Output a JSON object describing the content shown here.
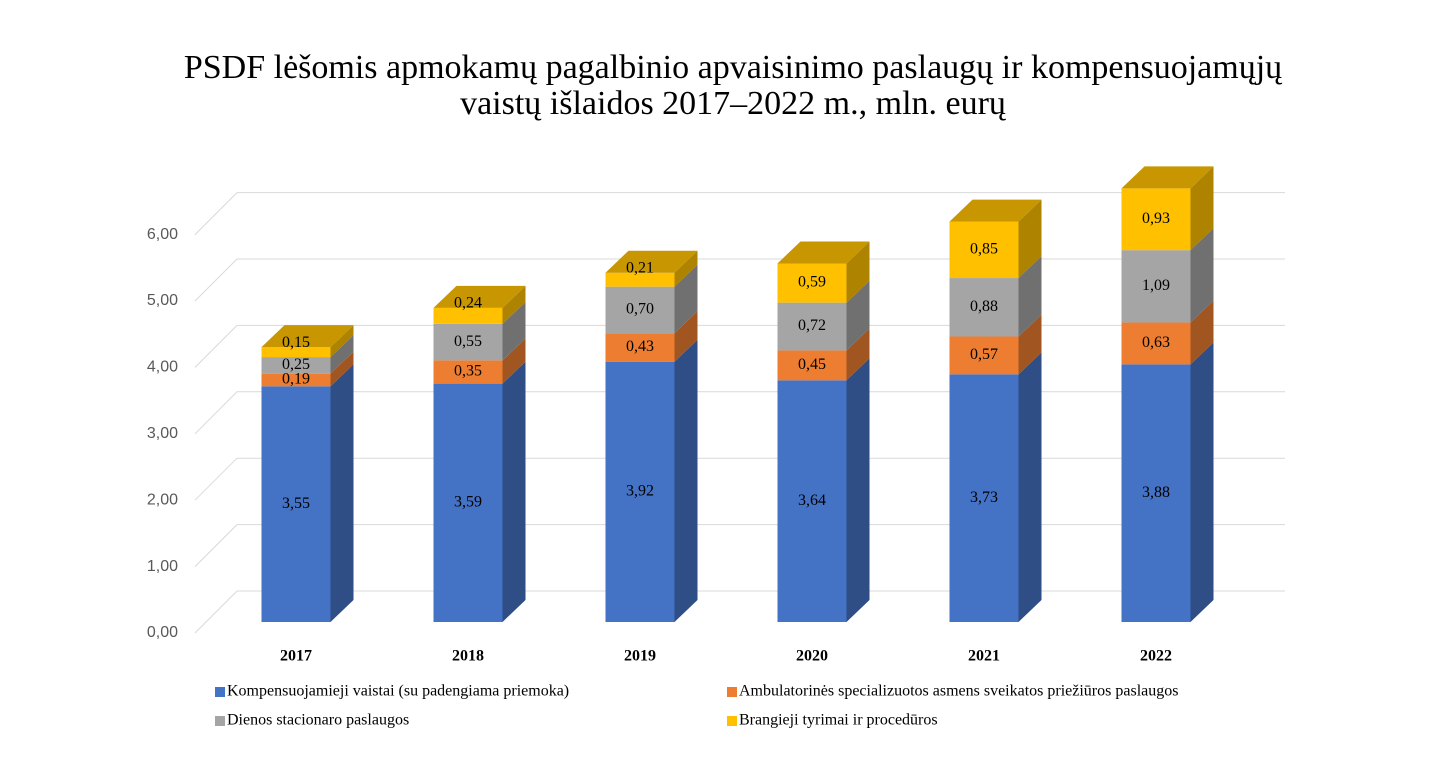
{
  "chart_data": {
    "type": "bar3d-stacked",
    "title": "PSDF lėšomis apmokamų pagalbinio apvaisinimo paslaugų ir kompensuojamųjų vaistų išlaidos 2017–2022 m., mln. eurų",
    "categories": [
      "2017",
      "2018",
      "2019",
      "2020",
      "2021",
      "2022"
    ],
    "ylim": [
      0,
      6
    ],
    "yticks": [
      {
        "value": 0,
        "label": "0,00"
      },
      {
        "value": 1,
        "label": "1,00"
      },
      {
        "value": 2,
        "label": "2,00"
      },
      {
        "value": 3,
        "label": "3,00"
      },
      {
        "value": 4,
        "label": "4,00"
      },
      {
        "value": 5,
        "label": "5,00"
      },
      {
        "value": 6,
        "label": "6,00"
      }
    ],
    "grid": true,
    "legend": "bottom",
    "series": [
      {
        "name": "Kompensuojamieji vaistai (su padengiama priemoka)",
        "color": "#4472c4",
        "values": [
          3.55,
          3.59,
          3.92,
          3.64,
          3.73,
          3.88
        ],
        "value_labels": [
          "3,55",
          "3,59",
          "3,92",
          "3,64",
          "3,73",
          "3,88"
        ]
      },
      {
        "name": "Ambulatorinės specializuotos asmens sveikatos priežiūros paslaugos",
        "color": "#ed7d31",
        "values": [
          0.19,
          0.35,
          0.43,
          0.45,
          0.57,
          0.63
        ],
        "value_labels": [
          "0,19",
          "0,35",
          "0,43",
          "0,45",
          "0,57",
          "0,63"
        ]
      },
      {
        "name": "Dienos stacionaro paslaugos",
        "color": "#a5a5a5",
        "values": [
          0.25,
          0.55,
          0.7,
          0.72,
          0.88,
          1.09
        ],
        "value_labels": [
          "0,25",
          "0,55",
          "0,70",
          "0,72",
          "0,88",
          "1,09"
        ]
      },
      {
        "name": "Brangieji tyrimai ir procedūros",
        "color": "#ffc000",
        "values": [
          0.15,
          0.24,
          0.21,
          0.59,
          0.85,
          0.93
        ],
        "value_labels": [
          "0,15",
          "0,24",
          "0,21",
          "0,59",
          "0,85",
          "0,93"
        ]
      }
    ]
  }
}
